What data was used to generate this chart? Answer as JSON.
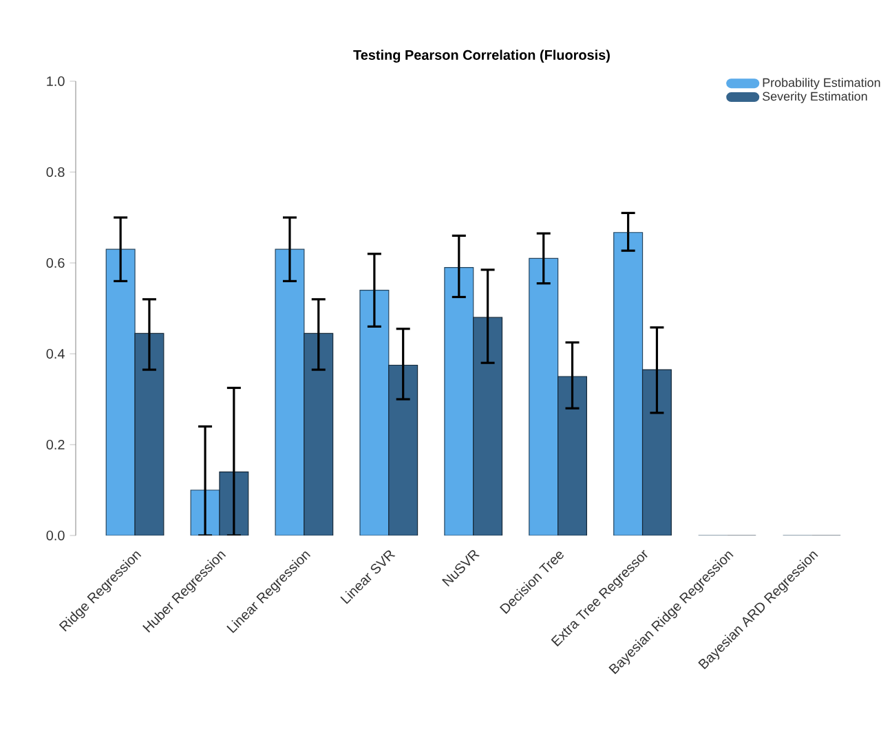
{
  "chart_data": {
    "type": "bar",
    "title": "Testing Pearson Correlation (Fluorosis)",
    "categories": [
      "Ridge Regression",
      "Huber Regression",
      "Linear Regression",
      "Linear SVR",
      "NuSVR",
      "Decision Tree",
      "Extra Tree Regressor",
      "Bayesian Ridge Regression",
      "Bayesian ARD Regression"
    ],
    "series": [
      {
        "name": "Probability Estimation",
        "color": "#5aabea",
        "values": [
          0.63,
          0.1,
          0.63,
          0.54,
          0.59,
          0.61,
          0.667,
          0,
          0
        ],
        "errors": [
          [
            0.56,
            0.7
          ],
          [
            0,
            0.24
          ],
          [
            0.56,
            0.7
          ],
          [
            0.46,
            0.62
          ],
          [
            0.525,
            0.66
          ],
          [
            0.555,
            0.665
          ],
          [
            0.627,
            0.71
          ],
          null,
          null
        ]
      },
      {
        "name": "Severity Estimation",
        "color": "#35648c",
        "values": [
          0.445,
          0.14,
          0.445,
          0.375,
          0.48,
          0.35,
          0.365,
          0,
          0
        ],
        "errors": [
          [
            0.365,
            0.52
          ],
          [
            0,
            0.325
          ],
          [
            0.365,
            0.52
          ],
          [
            0.3,
            0.455
          ],
          [
            0.38,
            0.585
          ],
          [
            0.28,
            0.425
          ],
          [
            0.27,
            0.458
          ],
          null,
          null
        ]
      }
    ],
    "ylim": [
      0,
      1
    ],
    "yticks": [
      {
        "value": 0,
        "label": "0.0"
      },
      0.2,
      0.4,
      0.6,
      0.8,
      {
        "value": 1,
        "label": "1.0"
      }
    ],
    "legend": "top right",
    "grid": false
  }
}
